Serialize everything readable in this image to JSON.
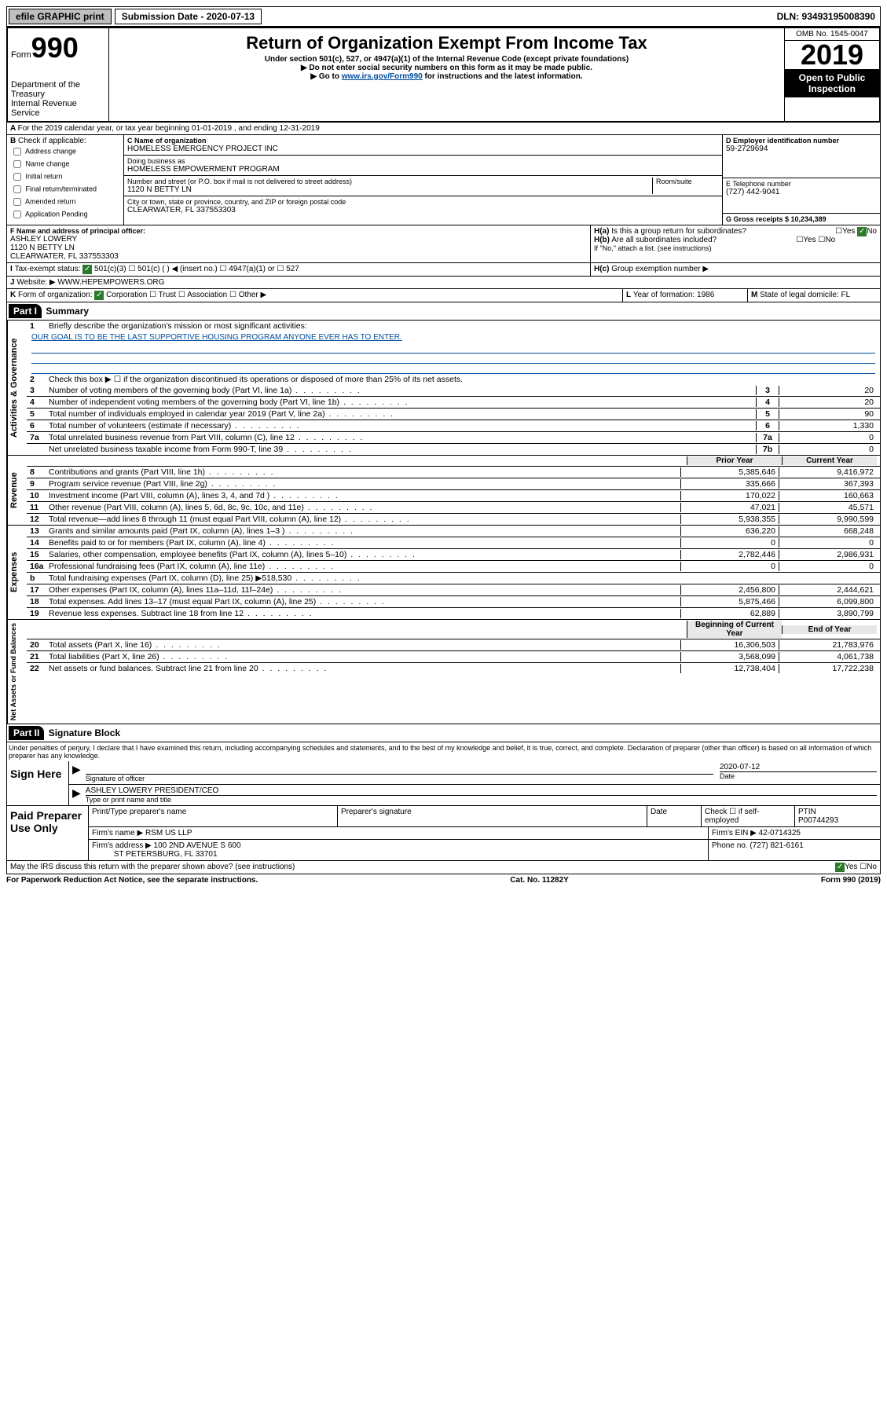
{
  "topbar": {
    "efile": "efile GRAPHIC print",
    "sub_label": "Submission Date - 2020-07-13",
    "dln": "DLN: 93493195008390"
  },
  "header": {
    "form_prefix": "Form",
    "form_number": "990",
    "dept": "Department of the Treasury",
    "irs": "Internal Revenue Service",
    "title": "Return of Organization Exempt From Income Tax",
    "sub1": "Under section 501(c), 527, or 4947(a)(1) of the Internal Revenue Code (except private foundations)",
    "sub2": "▶ Do not enter social security numbers on this form as it may be made public.",
    "sub3_pre": "▶ Go to ",
    "sub3_link": "www.irs.gov/Form990",
    "sub3_post": " for instructions and the latest information.",
    "omb": "OMB No. 1545-0047",
    "year": "2019",
    "open": "Open to Public Inspection"
  },
  "boxA": {
    "text": "For the 2019 calendar year, or tax year beginning 01-01-2019     , and ending 12-31-2019"
  },
  "boxB": {
    "label": "Check if applicable:",
    "items": [
      "Address change",
      "Name change",
      "Initial return",
      "Final return/terminated",
      "Amended return",
      "Application Pending"
    ]
  },
  "boxC": {
    "name_label": "Name of organization",
    "name": "HOMELESS EMERGENCY PROJECT INC",
    "dba_label": "Doing business as",
    "dba": "HOMELESS EMPOWERMENT PROGRAM",
    "addr_label": "Number and street (or P.O. box if mail is not delivered to street address)",
    "room_label": "Room/suite",
    "addr": "1120 N BETTY LN",
    "city_label": "City or town, state or province, country, and ZIP or foreign postal code",
    "city": "CLEARWATER, FL  337553303"
  },
  "boxD": {
    "label": "D Employer identification number",
    "value": "59-2729694"
  },
  "boxE": {
    "label": "E Telephone number",
    "value": "(727) 442-9041"
  },
  "boxG": {
    "label": "G Gross receipts $ 10,234,389"
  },
  "boxF": {
    "label": "F  Name and address of principal officer:",
    "name": "ASHLEY LOWERY",
    "addr1": "1120 N BETTY LN",
    "addr2": "CLEARWATER, FL  337553303"
  },
  "boxH": {
    "ha": "Is this a group return for subordinates?",
    "hb": "Are all subordinates included?",
    "hb_note": "If \"No,\" attach a list. (see instructions)",
    "hc": "Group exemption number ▶"
  },
  "boxI": {
    "label": "Tax-exempt status:",
    "opts": [
      "501(c)(3)",
      "501(c) (  ) ◀ (insert no.)",
      "4947(a)(1) or",
      "527"
    ]
  },
  "boxJ": {
    "label": "Website: ▶",
    "value": "WWW.HEPEMPOWERS.ORG"
  },
  "boxK": {
    "label": "Form of organization:",
    "opts": [
      "Corporation",
      "Trust",
      "Association",
      "Other ▶"
    ]
  },
  "boxL": {
    "label": "Year of formation: 1986"
  },
  "boxM": {
    "label": "State of legal domicile: FL"
  },
  "partI": {
    "tag": "Part I",
    "title": "Summary",
    "line1_label": "Briefly describe the organization's mission or most significant activities:",
    "mission": "OUR GOAL IS TO BE THE LAST SUPPORTIVE HOUSING PROGRAM ANYONE EVER HAS TO ENTER.",
    "line2": "Check this box ▶ ☐  if the organization discontinued its operations or disposed of more than 25% of its net assets.",
    "governance": [
      {
        "n": "3",
        "d": "Number of voting members of the governing body (Part VI, line 1a)",
        "b": "3",
        "v": "20"
      },
      {
        "n": "4",
        "d": "Number of independent voting members of the governing body (Part VI, line 1b)",
        "b": "4",
        "v": "20"
      },
      {
        "n": "5",
        "d": "Total number of individuals employed in calendar year 2019 (Part V, line 2a)",
        "b": "5",
        "v": "90"
      },
      {
        "n": "6",
        "d": "Total number of volunteers (estimate if necessary)",
        "b": "6",
        "v": "1,330"
      },
      {
        "n": "7a",
        "d": "Total unrelated business revenue from Part VIII, column (C), line 12",
        "b": "7a",
        "v": "0"
      },
      {
        "n": "",
        "d": "Net unrelated business taxable income from Form 990-T, line 39",
        "b": "7b",
        "v": "0"
      }
    ],
    "col_prior": "Prior Year",
    "col_current": "Current Year",
    "revenue": [
      {
        "n": "8",
        "d": "Contributions and grants (Part VIII, line 1h)",
        "p": "5,385,646",
        "c": "9,416,972"
      },
      {
        "n": "9",
        "d": "Program service revenue (Part VIII, line 2g)",
        "p": "335,666",
        "c": "367,393"
      },
      {
        "n": "10",
        "d": "Investment income (Part VIII, column (A), lines 3, 4, and 7d )",
        "p": "170,022",
        "c": "160,663"
      },
      {
        "n": "11",
        "d": "Other revenue (Part VIII, column (A), lines 5, 6d, 8c, 9c, 10c, and 11e)",
        "p": "47,021",
        "c": "45,571"
      },
      {
        "n": "12",
        "d": "Total revenue—add lines 8 through 11 (must equal Part VIII, column (A), line 12)",
        "p": "5,938,355",
        "c": "9,990,599"
      }
    ],
    "expenses": [
      {
        "n": "13",
        "d": "Grants and similar amounts paid (Part IX, column (A), lines 1–3 )",
        "p": "636,220",
        "c": "668,248"
      },
      {
        "n": "14",
        "d": "Benefits paid to or for members (Part IX, column (A), line 4)",
        "p": "0",
        "c": "0"
      },
      {
        "n": "15",
        "d": "Salaries, other compensation, employee benefits (Part IX, column (A), lines 5–10)",
        "p": "2,782,446",
        "c": "2,986,931"
      },
      {
        "n": "16a",
        "d": "Professional fundraising fees (Part IX, column (A), line 11e)",
        "p": "0",
        "c": "0"
      },
      {
        "n": "b",
        "d": "Total fundraising expenses (Part IX, column (D), line 25) ▶518,530",
        "p": "",
        "c": ""
      },
      {
        "n": "17",
        "d": "Other expenses (Part IX, column (A), lines 11a–11d, 11f–24e)",
        "p": "2,456,800",
        "c": "2,444,621"
      },
      {
        "n": "18",
        "d": "Total expenses. Add lines 13–17 (must equal Part IX, column (A), line 25)",
        "p": "5,875,466",
        "c": "6,099,800"
      },
      {
        "n": "19",
        "d": "Revenue less expenses. Subtract line 18 from line 12",
        "p": "62,889",
        "c": "3,890,799"
      }
    ],
    "col_begin": "Beginning of Current Year",
    "col_end": "End of Year",
    "netassets": [
      {
        "n": "20",
        "d": "Total assets (Part X, line 16)",
        "p": "16,306,503",
        "c": "21,783,976"
      },
      {
        "n": "21",
        "d": "Total liabilities (Part X, line 26)",
        "p": "3,568,099",
        "c": "4,061,738"
      },
      {
        "n": "22",
        "d": "Net assets or fund balances. Subtract line 21 from line 20",
        "p": "12,738,404",
        "c": "17,722,238"
      }
    ]
  },
  "partII": {
    "tag": "Part II",
    "title": "Signature Block",
    "perjury": "Under penalties of perjury, I declare that I have examined this return, including accompanying schedules and statements, and to the best of my knowledge and belief, it is true, correct, and complete. Declaration of preparer (other than officer) is based on all information of which preparer has any knowledge.",
    "sign_here": "Sign Here",
    "sig_officer": "Signature of officer",
    "sig_date": "2020-07-12",
    "sig_date_label": "Date",
    "officer_name": "ASHLEY LOWERY  PRESIDENT/CEO",
    "name_title_label": "Type or print name and title",
    "paid_label": "Paid Preparer Use Only",
    "prep_name_label": "Print/Type preparer's name",
    "prep_sig_label": "Preparer's signature",
    "date_label": "Date",
    "check_label": "Check ☐ if self-employed",
    "ptin_label": "PTIN",
    "ptin": "P00744293",
    "firm_name_label": "Firm's name      ▶",
    "firm_name": "RSM US LLP",
    "firm_ein_label": "Firm's EIN ▶ 42-0714325",
    "firm_addr_label": "Firm's address ▶",
    "firm_addr": "100 2ND AVENUE S 600",
    "firm_city": "ST PETERSBURG, FL  33701",
    "phone_label": "Phone no. (727) 821-6161",
    "discuss": "May the IRS discuss this return with the preparer shown above? (see instructions)"
  },
  "footer": {
    "left": "For Paperwork Reduction Act Notice, see the separate instructions.",
    "mid": "Cat. No. 11282Y",
    "right": "Form 990 (2019)"
  }
}
